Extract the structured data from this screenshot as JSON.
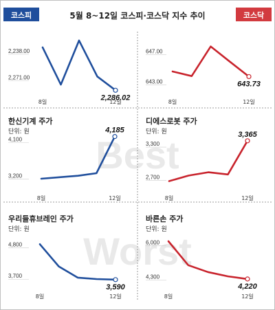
{
  "title": "5월 8~12일 코스피·코스닥 지수 추이",
  "tabs": {
    "left": "코스피",
    "right": "코스닥"
  },
  "watermark": [
    "Best",
    "Worst"
  ],
  "colors": {
    "kospi": "#1f4e9c",
    "kosdaq": "#c8232c",
    "kospi_tab": "#1f4e9c",
    "kosdaq_tab": "#d23a3f",
    "divider": "#9a9a9a",
    "border": "#bfbfbf",
    "text": "#222222",
    "watermark": "#e9e9e9"
  },
  "chart_data": [
    {
      "type": "line",
      "id": "kospi-index",
      "title": "",
      "unit": "",
      "color_key": "kospi",
      "x": [
        "8일",
        "",
        "",
        "",
        "12일"
      ],
      "x_tick_labels": [
        "8일",
        "12일"
      ],
      "values": [
        2233.0,
        2279.0,
        2224.5,
        2269.0,
        2286.02
      ],
      "inverted": true,
      "ylim": [
        2228.0,
        2281.5
      ],
      "y_ticks": [
        2238.0,
        2271.0
      ],
      "y_tick_labels": [
        "2,238.00",
        "2,271.00"
      ],
      "end_label": "2,286.02"
    },
    {
      "type": "line",
      "id": "kosdaq-index",
      "title": "",
      "unit": "",
      "color_key": "kosdaq",
      "x": [
        "8일",
        "",
        "",
        "",
        "12일"
      ],
      "x_tick_labels": [
        "8일",
        "12일"
      ],
      "values": [
        644.4,
        643.8,
        647.7,
        645.7,
        643.73
      ],
      "ylim": [
        642.5,
        648.3
      ],
      "y_ticks": [
        643.0,
        647.0
      ],
      "y_tick_labels": [
        "643.00",
        "647.00"
      ],
      "end_label": "643.73"
    },
    {
      "type": "line",
      "id": "hanshin-machinery",
      "title": "한신기계 주가",
      "unit": "단위: 원",
      "color_key": "kospi",
      "x": [
        "8일",
        "",
        "",
        "",
        "12일"
      ],
      "x_tick_labels": [
        "8일",
        "12일"
      ],
      "values": [
        3140,
        3176,
        3212,
        3275,
        4185
      ],
      "ylim": [
        3020,
        4230
      ],
      "y_ticks": [
        3200,
        4100
      ],
      "y_tick_labels": [
        "3,200",
        "4,100"
      ],
      "end_label": "4,185"
    },
    {
      "type": "line",
      "id": "dieshrobot",
      "title": "디에스로봇 주가",
      "unit": "단위: 원",
      "color_key": "kosdaq",
      "x": [
        "8일",
        "",
        "",
        "",
        "12일"
      ],
      "x_tick_labels": [
        "8일",
        "12일"
      ],
      "values": [
        2640,
        2740,
        2800,
        2760,
        3365
      ],
      "ylim": [
        2560,
        3400
      ],
      "y_ticks": [
        2700,
        3300
      ],
      "y_tick_labels": [
        "2,700",
        "3,300"
      ],
      "end_label": "3,365"
    },
    {
      "type": "line",
      "id": "woori-dle",
      "title": "우리들휴브레인 주가",
      "unit": "단위: 원",
      "color_key": "kospi",
      "x": [
        "8일",
        "",
        "",
        "",
        "12일"
      ],
      "x_tick_labels": [
        "8일",
        "12일"
      ],
      "values": [
        4825,
        4050,
        3660,
        3610,
        3590
      ],
      "ylim": [
        3490,
        5000
      ],
      "y_ticks": [
        3700,
        4800
      ],
      "y_tick_labels": [
        "3,700",
        "4,800"
      ],
      "end_label": "3,590"
    },
    {
      "type": "line",
      "id": "barunson",
      "title": "바른손 주가",
      "unit": "단위: 원",
      "color_key": "kosdaq",
      "x": [
        "8일",
        "",
        "",
        "",
        "12일"
      ],
      "x_tick_labels": [
        "8일",
        "12일"
      ],
      "values": [
        6080,
        4900,
        4560,
        4350,
        4220
      ],
      "ylim": [
        4080,
        6350
      ],
      "y_ticks": [
        4300,
        6000
      ],
      "y_tick_labels": [
        "4,300",
        "6,000"
      ],
      "end_label": "4,220"
    }
  ]
}
